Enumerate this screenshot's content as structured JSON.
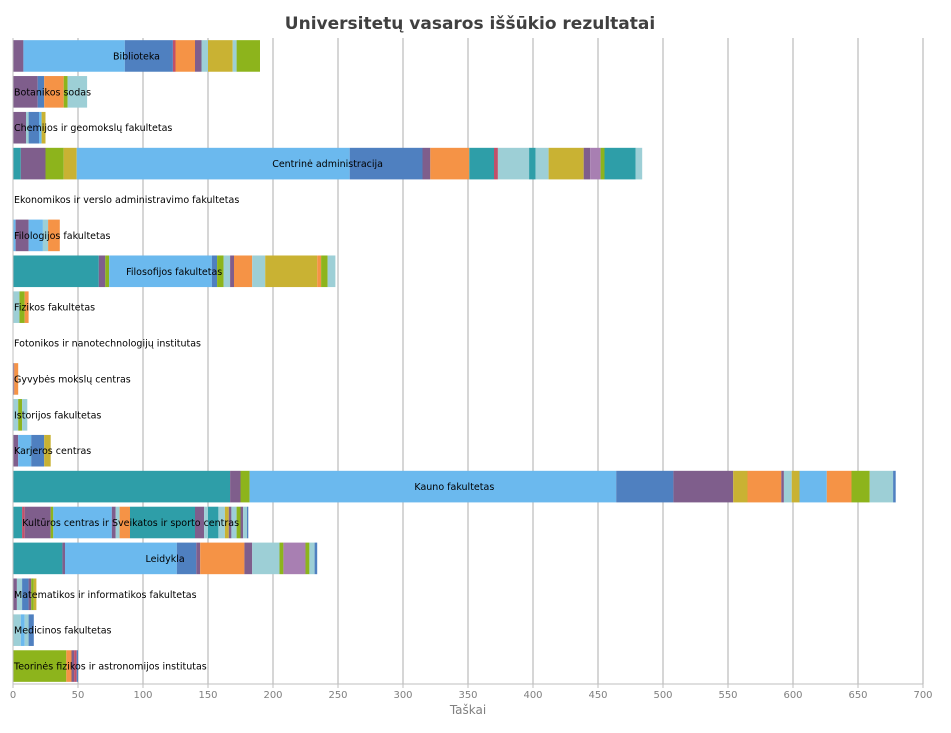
{
  "chart_data": {
    "type": "bar",
    "orientation": "horizontal",
    "stacked": true,
    "title": "Universitetų vasaros iššūkio rezultatai",
    "xlabel": "Taškai",
    "ylabel": "",
    "xlim": [
      0,
      700
    ],
    "xticks": [
      0,
      50,
      100,
      150,
      200,
      250,
      300,
      350,
      400,
      450,
      500,
      550,
      600,
      650,
      700
    ],
    "grid": "vertical",
    "legend": "none",
    "palette": [
      "#2e9ea8",
      "#7f5e8c",
      "#8db41c",
      "#6bb9ee",
      "#4f80c0",
      "#f59346",
      "#c9b233",
      "#9dcfd6",
      "#c0506a",
      "#a87fb2"
    ],
    "categories": [
      {
        "label": "Biblioteka",
        "segments": [
          {
            "v": 8,
            "c": 1
          },
          {
            "v": 78,
            "c": 3
          },
          {
            "v": 37,
            "c": 4
          },
          {
            "v": 2,
            "c": 8
          },
          {
            "v": 15,
            "c": 5
          },
          {
            "v": 5,
            "c": 1
          },
          {
            "v": 5,
            "c": 7
          },
          {
            "v": 19,
            "c": 6
          },
          {
            "v": 3,
            "c": 7
          },
          {
            "v": 18,
            "c": 2
          }
        ]
      },
      {
        "label": "Botanikos sodas",
        "segments": [
          {
            "v": 19,
            "c": 1
          },
          {
            "v": 5,
            "c": 4
          },
          {
            "v": 15,
            "c": 5
          },
          {
            "v": 3,
            "c": 2
          },
          {
            "v": 15,
            "c": 7
          }
        ]
      },
      {
        "label": "Chemijos ir geomokslų fakultetas",
        "segments": [
          {
            "v": 10,
            "c": 1
          },
          {
            "v": 2,
            "c": 7
          },
          {
            "v": 8,
            "c": 4
          },
          {
            "v": 2,
            "c": 3
          },
          {
            "v": 3,
            "c": 6
          }
        ]
      },
      {
        "label": "Centrinė administracija",
        "segments": [
          {
            "v": 6,
            "c": 0
          },
          {
            "v": 19,
            "c": 1
          },
          {
            "v": 14,
            "c": 2
          },
          {
            "v": 10,
            "c": 6
          },
          {
            "v": 210,
            "c": 3
          },
          {
            "v": 56,
            "c": 4
          },
          {
            "v": 6,
            "c": 1
          },
          {
            "v": 30,
            "c": 5
          },
          {
            "v": 19,
            "c": 0
          },
          {
            "v": 3,
            "c": 8
          },
          {
            "v": 24,
            "c": 7
          },
          {
            "v": 5,
            "c": 0
          },
          {
            "v": 10,
            "c": 7
          },
          {
            "v": 27,
            "c": 6
          },
          {
            "v": 5,
            "c": 1
          },
          {
            "v": 8,
            "c": 9
          },
          {
            "v": 3,
            "c": 2
          },
          {
            "v": 24,
            "c": 0
          },
          {
            "v": 5,
            "c": 7
          }
        ]
      },
      {
        "label": "Ekonomikos ir verslo administravimo fakultetas",
        "segments": []
      },
      {
        "label": "Filologijos fakultetas",
        "segments": [
          {
            "v": 2,
            "c": 3
          },
          {
            "v": 10,
            "c": 1
          },
          {
            "v": 11,
            "c": 3
          },
          {
            "v": 4,
            "c": 7
          },
          {
            "v": 9,
            "c": 5
          }
        ]
      },
      {
        "label": "Filosofijos fakultetas",
        "segments": [
          {
            "v": 66,
            "c": 0
          },
          {
            "v": 5,
            "c": 1
          },
          {
            "v": 3,
            "c": 2
          },
          {
            "v": 79,
            "c": 3
          },
          {
            "v": 4,
            "c": 4
          },
          {
            "v": 5,
            "c": 2
          },
          {
            "v": 5,
            "c": 7
          },
          {
            "v": 3,
            "c": 1
          },
          {
            "v": 14,
            "c": 5
          },
          {
            "v": 10,
            "c": 7
          },
          {
            "v": 40,
            "c": 6
          },
          {
            "v": 3,
            "c": 5
          },
          {
            "v": 5,
            "c": 2
          },
          {
            "v": 6,
            "c": 7
          }
        ]
      },
      {
        "label": "Fizikos fakultetas",
        "segments": [
          {
            "v": 5,
            "c": 7
          },
          {
            "v": 4,
            "c": 2
          },
          {
            "v": 3,
            "c": 5
          }
        ]
      },
      {
        "label": "Fotonikos ir nanotechnologijų institutas",
        "segments": []
      },
      {
        "label": "Gyvybės mokslų centras",
        "segments": [
          {
            "v": 1,
            "c": 1
          },
          {
            "v": 3,
            "c": 5
          }
        ]
      },
      {
        "label": "Istorijos fakultetas",
        "segments": [
          {
            "v": 4,
            "c": 7
          },
          {
            "v": 3,
            "c": 2
          },
          {
            "v": 4,
            "c": 7
          }
        ]
      },
      {
        "label": "Karjeros centras",
        "segments": [
          {
            "v": 4,
            "c": 1
          },
          {
            "v": 10,
            "c": 3
          },
          {
            "v": 10,
            "c": 4
          },
          {
            "v": 5,
            "c": 6
          }
        ]
      },
      {
        "label": "Kauno fakultetas",
        "segments": [
          {
            "v": 167,
            "c": 0
          },
          {
            "v": 8,
            "c": 1
          },
          {
            "v": 7,
            "c": 2
          },
          {
            "v": 282,
            "c": 3
          },
          {
            "v": 44,
            "c": 4
          },
          {
            "v": 46,
            "c": 1
          },
          {
            "v": 11,
            "c": 6
          },
          {
            "v": 26,
            "c": 5
          },
          {
            "v": 2,
            "c": 1
          },
          {
            "v": 6,
            "c": 7
          },
          {
            "v": 6,
            "c": 6
          },
          {
            "v": 21,
            "c": 3
          },
          {
            "v": 19,
            "c": 5
          },
          {
            "v": 14,
            "c": 2
          },
          {
            "v": 18,
            "c": 7
          },
          {
            "v": 2,
            "c": 4
          }
        ]
      },
      {
        "label": "Kultūros centras ir Sveikatos ir sporto centras",
        "segments": [
          {
            "v": 7,
            "c": 0
          },
          {
            "v": 2,
            "c": 8
          },
          {
            "v": 20,
            "c": 1
          },
          {
            "v": 2,
            "c": 2
          },
          {
            "v": 45,
            "c": 3
          },
          {
            "v": 3,
            "c": 1
          },
          {
            "v": 3,
            "c": 7
          },
          {
            "v": 8,
            "c": 5
          },
          {
            "v": 50,
            "c": 0
          },
          {
            "v": 7,
            "c": 1
          },
          {
            "v": 3,
            "c": 7
          },
          {
            "v": 8,
            "c": 0
          },
          {
            "v": 5,
            "c": 7
          },
          {
            "v": 3,
            "c": 6
          },
          {
            "v": 2,
            "c": 1
          },
          {
            "v": 4,
            "c": 7
          },
          {
            "v": 3,
            "c": 2
          },
          {
            "v": 2,
            "c": 1
          },
          {
            "v": 3,
            "c": 7
          },
          {
            "v": 1,
            "c": 4
          }
        ]
      },
      {
        "label": "Leidykla",
        "segments": [
          {
            "v": 38,
            "c": 0
          },
          {
            "v": 2,
            "c": 1
          },
          {
            "v": 86,
            "c": 3
          },
          {
            "v": 15,
            "c": 4
          },
          {
            "v": 3,
            "c": 1
          },
          {
            "v": 34,
            "c": 5
          },
          {
            "v": 6,
            "c": 1
          },
          {
            "v": 21,
            "c": 7
          },
          {
            "v": 3,
            "c": 2
          },
          {
            "v": 17,
            "c": 9
          },
          {
            "v": 3,
            "c": 2
          },
          {
            "v": 4,
            "c": 7
          },
          {
            "v": 2,
            "c": 4
          }
        ]
      },
      {
        "label": "Matematikos ir informatikos fakultetas",
        "segments": [
          {
            "v": 3,
            "c": 1
          },
          {
            "v": 4,
            "c": 7
          },
          {
            "v": 5,
            "c": 4
          },
          {
            "v": 2,
            "c": 1
          },
          {
            "v": 2,
            "c": 2
          },
          {
            "v": 2,
            "c": 6
          }
        ]
      },
      {
        "label": "Medicinos fakultetas",
        "segments": [
          {
            "v": 6,
            "c": 7
          },
          {
            "v": 3,
            "c": 3
          },
          {
            "v": 3,
            "c": 7
          },
          {
            "v": 4,
            "c": 4
          }
        ]
      },
      {
        "label": "Teorinės fizikos ir astronomijos institutas",
        "segments": [
          {
            "v": 41,
            "c": 2
          },
          {
            "v": 4,
            "c": 5
          },
          {
            "v": 2,
            "c": 1
          },
          {
            "v": 2,
            "c": 8
          },
          {
            "v": 1,
            "c": 4
          }
        ]
      }
    ]
  }
}
